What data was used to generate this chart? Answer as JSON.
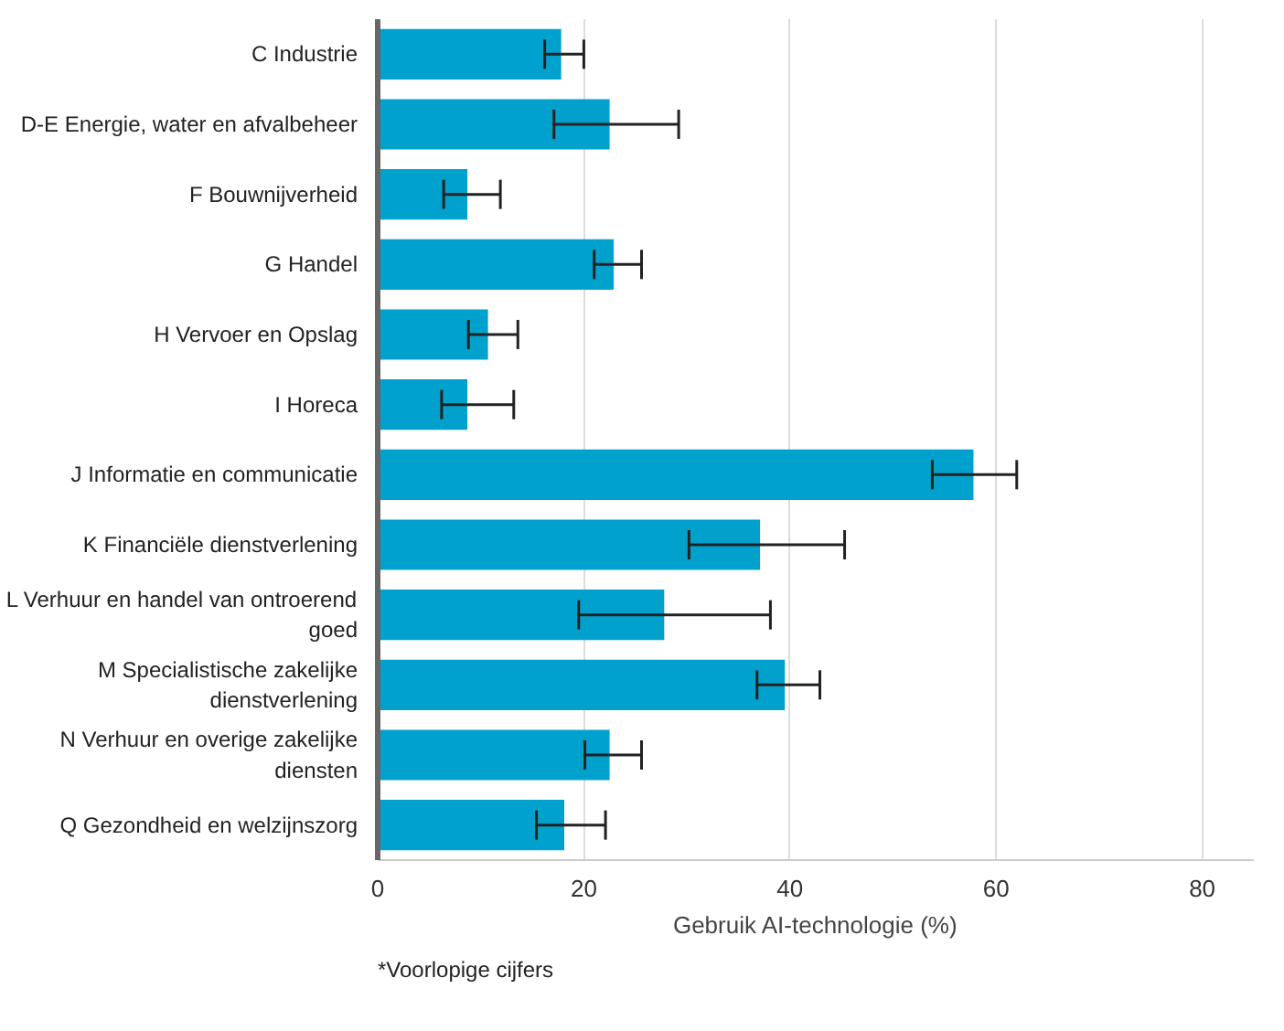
{
  "chart_data": {
    "type": "bar",
    "orientation": "horizontal",
    "xlabel": "Gebruik AI-technologie (%)",
    "categories": [
      "C Industrie",
      "D-E Energie, water en afvalbeheer",
      "F Bouwnijverheid",
      "G Handel",
      "H Vervoer en Opslag",
      "I Horeca",
      "J Informatie en communicatie",
      "K Financiële dienstverlening",
      "L Verhuur en handel van ontroerend goed",
      "M Specialistische zakelijke dienstverlening",
      "N Verhuur en overige zakelijke diensten",
      "Q Gezondheid en welzijnszorg"
    ],
    "values": [
      17.8,
      22.5,
      8.7,
      22.9,
      10.7,
      8.7,
      57.8,
      37.1,
      27.8,
      39.5,
      22.5,
      18.1
    ],
    "errors": [
      [
        16.2,
        20.0
      ],
      [
        17.1,
        29.2
      ],
      [
        6.4,
        11.9
      ],
      [
        21.0,
        25.6
      ],
      [
        8.8,
        13.6
      ],
      [
        6.2,
        13.2
      ],
      [
        53.8,
        62.0
      ],
      [
        30.2,
        45.3
      ],
      [
        19.5,
        38.1
      ],
      [
        36.8,
        42.9
      ],
      [
        20.1,
        25.6
      ],
      [
        15.4,
        22.1
      ]
    ],
    "color": "#00a1cd",
    "xlim": [
      0,
      85
    ],
    "xticks": [
      0,
      20,
      40,
      60,
      80
    ],
    "grid": "x",
    "annotations": [
      "*Voorlopige cijfers"
    ]
  }
}
